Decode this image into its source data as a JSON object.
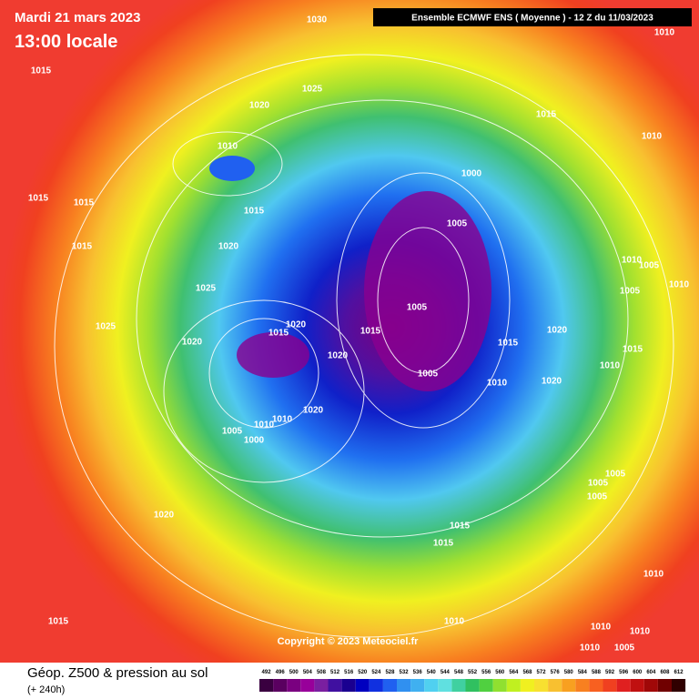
{
  "header": {
    "date": "Mardi 21 mars 2023",
    "time": "13:00 locale",
    "model": "Ensemble ECMWF ENS  ( Moyenne )  -  12 Z du 11/03/2023"
  },
  "copyright": "Copyright © 2023 Meteociel.fr",
  "footer": {
    "title": "Géop. Z500 & pression au sol",
    "lead": "(+ 240h)"
  },
  "colorbar": {
    "ticks": [
      492,
      496,
      500,
      504,
      508,
      512,
      516,
      520,
      524,
      528,
      532,
      536,
      540,
      544,
      548,
      552,
      556,
      560,
      564,
      568,
      572,
      576,
      580,
      584,
      588,
      592,
      596,
      600,
      604,
      608,
      612
    ],
    "colors": [
      "#3a0040",
      "#5a0060",
      "#7a0080",
      "#98009a",
      "#7a1fa0",
      "#4010a0",
      "#1a0090",
      "#0000c0",
      "#1030e0",
      "#2060f0",
      "#3090f0",
      "#40b0f0",
      "#50d0f0",
      "#60e0e0",
      "#40d0a0",
      "#30c060",
      "#50d040",
      "#90e030",
      "#c0f020",
      "#f0f020",
      "#f8e030",
      "#f8c030",
      "#f8a020",
      "#f88020",
      "#f86020",
      "#f04020",
      "#e02020",
      "#c01010",
      "#a00808",
      "#700000",
      "#300000"
    ]
  },
  "isobar_labels": [
    1030,
    1010,
    1015,
    1025,
    1020,
    1015,
    1010,
    1010,
    1000,
    1015,
    1015,
    1015,
    1005,
    1015,
    1020,
    1010,
    1005,
    1025,
    1005,
    1010,
    1005,
    1025,
    1020,
    1015,
    1015,
    1020,
    1020,
    1015,
    1020,
    1015,
    1005,
    1010,
    1020,
    1010,
    1020,
    1010,
    1005,
    1000,
    1010,
    1005,
    1005,
    1005,
    1020,
    1015,
    1015,
    1010,
    1015,
    1010,
    1010,
    1010,
    1005,
    1010
  ]
}
